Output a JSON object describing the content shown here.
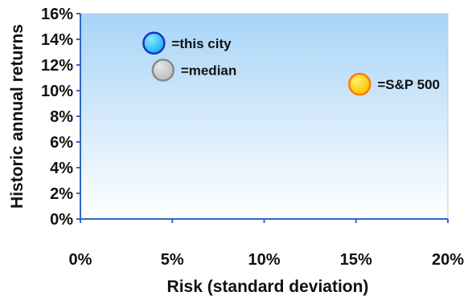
{
  "chart_data": {
    "type": "scatter",
    "title": "",
    "xlabel": "Risk (standard deviation)",
    "ylabel": "Historic annual returns",
    "xlim": [
      0,
      20
    ],
    "ylim": [
      0,
      16
    ],
    "x_ticks": [
      0,
      5,
      10,
      15,
      20
    ],
    "y_ticks": [
      0,
      2,
      4,
      6,
      8,
      10,
      12,
      14,
      16
    ],
    "x_tick_labels": [
      "0%",
      "5%",
      "10%",
      "15%",
      "20%"
    ],
    "y_tick_labels": [
      "0%",
      "2%",
      "4%",
      "6%",
      "8%",
      "10%",
      "12%",
      "14%",
      "16%"
    ],
    "grid": false,
    "legend": "none",
    "plot_background": "gradient #a8d4f7 to #ffffff",
    "axis_color": "#2f68c9",
    "points": [
      {
        "x": 4.0,
        "y": 13.7,
        "label": "=this city",
        "color": "#18b4f2",
        "stroke": "#1f2ec8"
      },
      {
        "x": 4.5,
        "y": 11.6,
        "label": "=median",
        "color": "#bdbdbd",
        "stroke": "#8a8a8a"
      },
      {
        "x": 15.2,
        "y": 10.5,
        "label": "=S&P 500",
        "color": "#ffc400",
        "stroke": "#ff7a00"
      }
    ]
  }
}
